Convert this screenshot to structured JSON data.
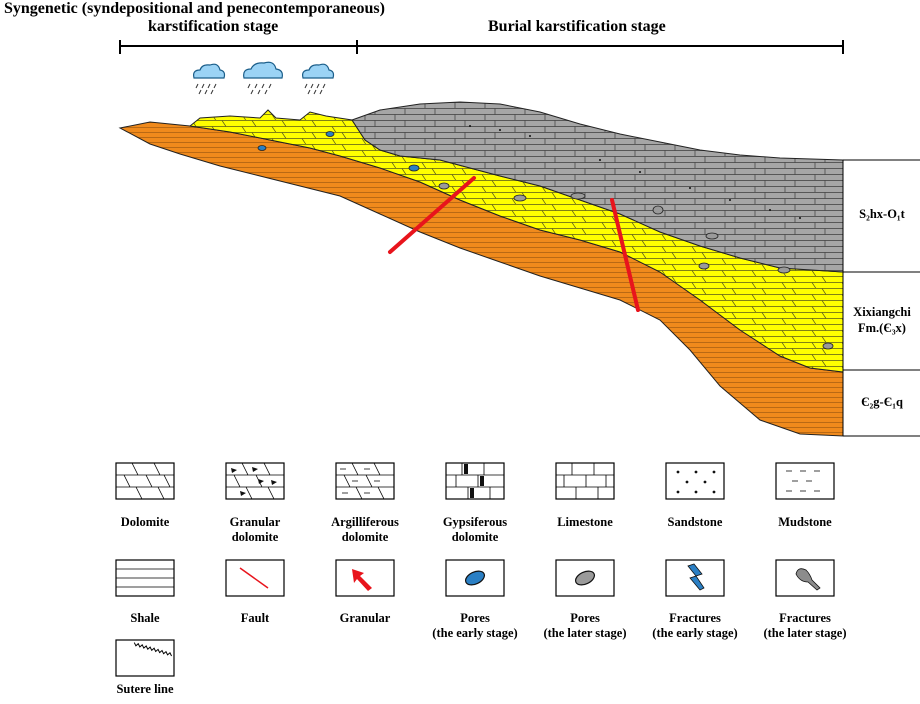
{
  "stages": {
    "left_line1": "Syngenetic (syndepositional and penecontemporaneous)",
    "left_line2": "karstification stage",
    "right": "Burial karstification stage"
  },
  "units": [
    {
      "label": "S₂hx-O₁t"
    },
    {
      "label_line1": "Xixiangchi",
      "label_line2": "Fm.(Є₃x)"
    },
    {
      "label": "Є₂g-Є₁q"
    }
  ],
  "colors": {
    "upper": "#a6a6a6",
    "middle": "#ffff00",
    "lower": "#f08a1c",
    "fault": "#e8141c",
    "pore_early": "#2a7fc4",
    "pore_later": "#9a9a9a"
  },
  "legend": {
    "row1": [
      {
        "icon": "dolomite-pattern",
        "lines": [
          "Dolomite"
        ]
      },
      {
        "icon": "granular-dolomite-pattern",
        "lines": [
          "Granular",
          "dolomite"
        ]
      },
      {
        "icon": "argilliferous-dolomite-pattern",
        "lines": [
          "Argilliferous",
          "dolomite"
        ]
      },
      {
        "icon": "gypsiferous-dolomite-pattern",
        "lines": [
          "Gypsiferous",
          "dolomite"
        ]
      },
      {
        "icon": "limestone-pattern",
        "lines": [
          "Limestone"
        ]
      },
      {
        "icon": "sandstone-pattern",
        "lines": [
          "Sandstone"
        ]
      },
      {
        "icon": "mudstone-pattern",
        "lines": [
          "Mudstone"
        ]
      }
    ],
    "row2": [
      {
        "icon": "shale-pattern",
        "lines": [
          "Shale"
        ]
      },
      {
        "icon": "fault-icon",
        "lines": [
          "Fault"
        ]
      },
      {
        "icon": "granular-arrow-icon",
        "lines": [
          "Granular"
        ]
      },
      {
        "icon": "early-pore-icon",
        "lines": [
          "Pores",
          "(the early stage)"
        ]
      },
      {
        "icon": "later-pore-icon",
        "lines": [
          "Pores",
          "(the later stage)"
        ]
      },
      {
        "icon": "early-fracture-icon",
        "lines": [
          "Fractures",
          "(the early stage)"
        ]
      },
      {
        "icon": "later-fracture-icon",
        "lines": [
          "Fractures",
          "(the later stage)"
        ]
      }
    ],
    "row3": [
      {
        "icon": "suture-line-icon",
        "lines": [
          "Sutere line"
        ]
      }
    ]
  }
}
